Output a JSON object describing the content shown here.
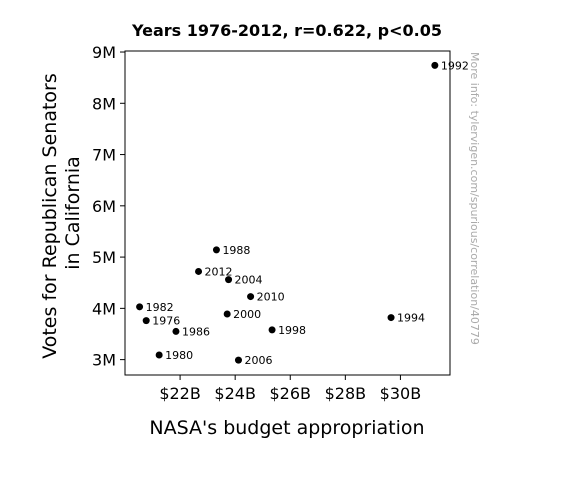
{
  "chart_data": {
    "type": "scatter",
    "title": "Years 1976-2012, r=0.622, p<0.05",
    "xlabel": "NASA's budget appropriation",
    "ylabel_lines": [
      "Votes for Republican Senators",
      "in California"
    ],
    "watermark": "More info: tylervigen.com/spurious/correlation/40779",
    "xlim": [
      20.0,
      31.8
    ],
    "ylim": [
      2.7,
      9.02
    ],
    "x_ticks": [
      {
        "value": 22,
        "label": "$22B"
      },
      {
        "value": 24,
        "label": "$24B"
      },
      {
        "value": 26,
        "label": "$26B"
      },
      {
        "value": 28,
        "label": "$28B"
      },
      {
        "value": 30,
        "label": "$30B"
      }
    ],
    "y_ticks": [
      {
        "value": 3,
        "label": "3M"
      },
      {
        "value": 4,
        "label": "4M"
      },
      {
        "value": 5,
        "label": "5M"
      },
      {
        "value": 6,
        "label": "6M"
      },
      {
        "value": 7,
        "label": "7M"
      },
      {
        "value": 8,
        "label": "8M"
      },
      {
        "value": 9,
        "label": "9M"
      }
    ],
    "marker_color": "#000000",
    "grid": false,
    "points": [
      {
        "label": "1976",
        "x": 20.77,
        "y": 3.76
      },
      {
        "label": "1980",
        "x": 21.24,
        "y": 3.09
      },
      {
        "label": "1982",
        "x": 20.53,
        "y": 4.03
      },
      {
        "label": "1986",
        "x": 21.85,
        "y": 3.55
      },
      {
        "label": "1988",
        "x": 23.32,
        "y": 5.14
      },
      {
        "label": "1992",
        "x": 31.25,
        "y": 8.74
      },
      {
        "label": "1994",
        "x": 29.66,
        "y": 3.82
      },
      {
        "label": "1998",
        "x": 25.34,
        "y": 3.58
      },
      {
        "label": "2000",
        "x": 23.71,
        "y": 3.89
      },
      {
        "label": "2004",
        "x": 23.76,
        "y": 4.56
      },
      {
        "label": "2006",
        "x": 24.12,
        "y": 2.99
      },
      {
        "label": "2010",
        "x": 24.56,
        "y": 4.23
      },
      {
        "label": "2012",
        "x": 22.67,
        "y": 4.72
      }
    ]
  }
}
